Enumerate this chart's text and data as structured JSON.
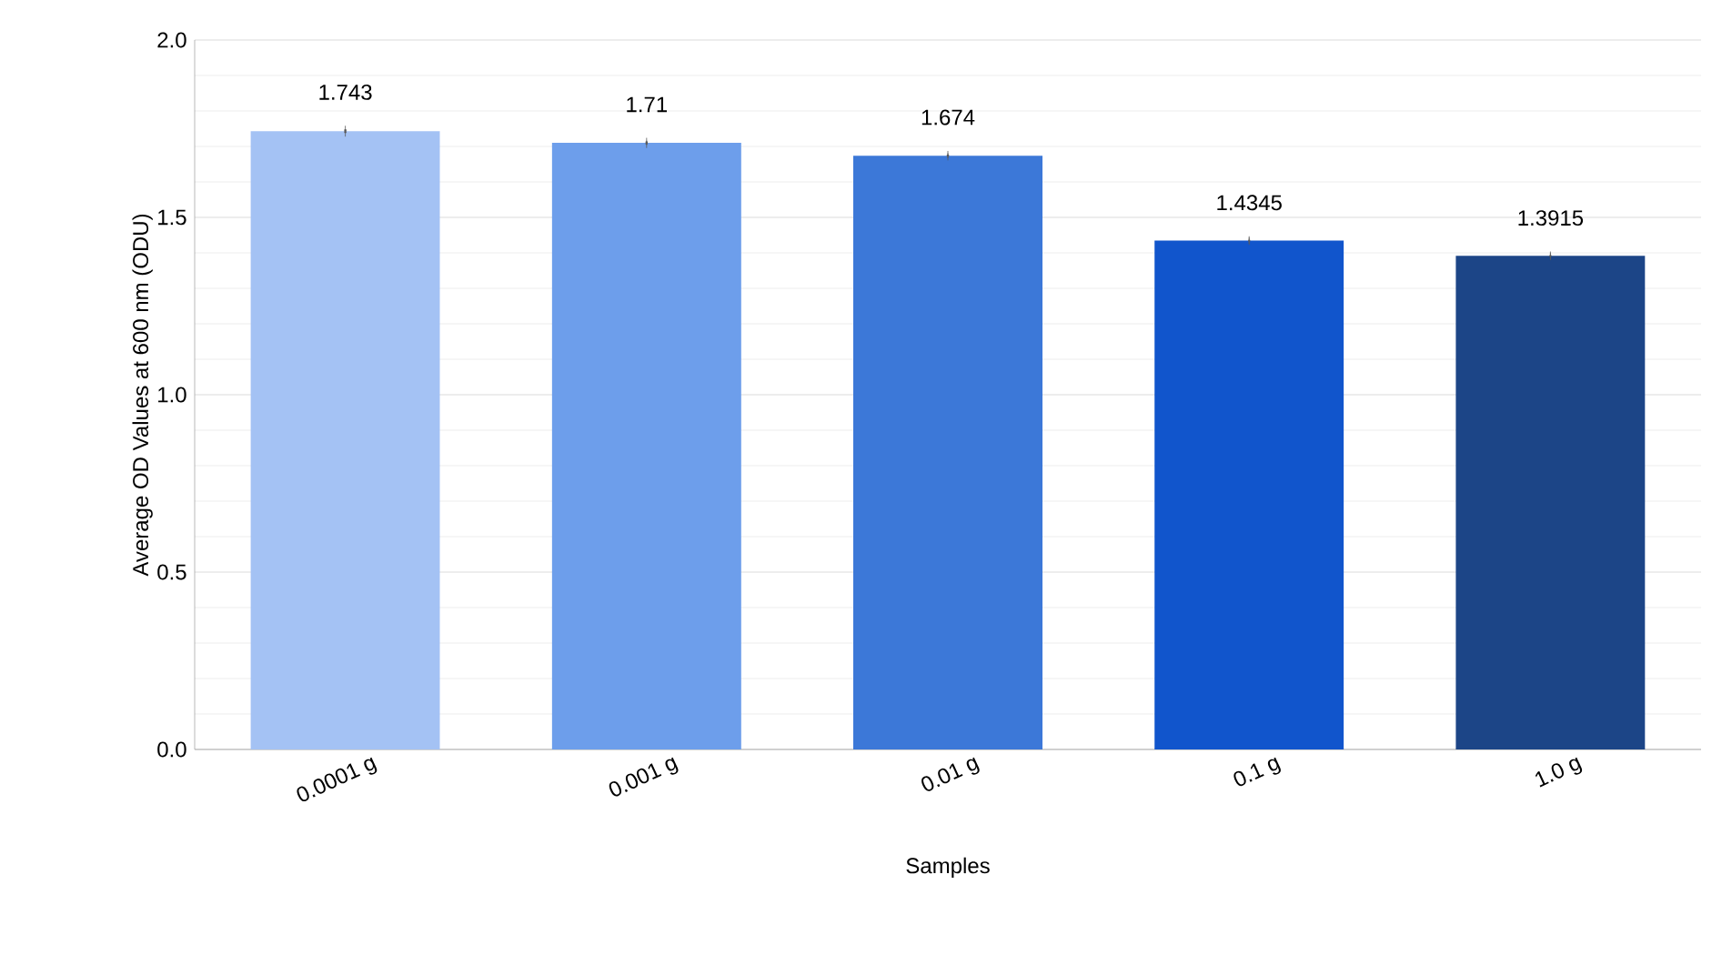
{
  "chart_data": {
    "type": "bar",
    "xlabel": "Samples",
    "ylabel": "Average OD Values at 600 nm (ODU)",
    "categories": [
      "0.0001 g",
      "0.001 g",
      "0.01 g",
      "0.1 g",
      "1.0 g"
    ],
    "values": [
      1.743,
      1.71,
      1.674,
      1.4345,
      1.3915
    ],
    "errors": [
      0.005,
      0.004,
      0.003,
      0.002,
      0.002
    ],
    "colors": [
      "#a4c2f4",
      "#6d9eeb",
      "#3c78d8",
      "#1155cc",
      "#1c4587"
    ],
    "ylim": [
      0,
      2
    ],
    "yticks": [
      {
        "value": 0,
        "label": "0.0"
      },
      {
        "value": 0.5,
        "label": "0.5"
      },
      {
        "value": 1,
        "label": "1.0"
      },
      {
        "value": 1.5,
        "label": "1.5"
      },
      {
        "value": 2,
        "label": "2.0"
      }
    ],
    "grid": true,
    "data_labels": true
  }
}
